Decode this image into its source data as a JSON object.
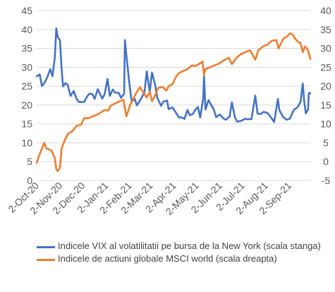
{
  "chart_data": {
    "type": "line",
    "left_axis": {
      "ylim": [
        0,
        45
      ],
      "ticks": [
        "0",
        "5",
        "10",
        "15",
        "20",
        "25",
        "30",
        "35",
        "40",
        "45"
      ]
    },
    "right_axis": {
      "ylim": [
        -5,
        40
      ],
      "ticks": [
        "-5",
        "0",
        "5",
        "10",
        "15",
        "20",
        "25",
        "30",
        "35",
        "40"
      ]
    },
    "x_range": [
      "2020-10-02",
      "2021-09-30"
    ],
    "x_ticks": [
      "2-Oct-20",
      "2-Nov-20",
      "2-Dec-20",
      "2-Jan-21",
      "2-Feb-21",
      "2-Mar-21",
      "2-Apr-21",
      "2-May-21",
      "2-Jun-21",
      "2-Jul-21",
      "2-Aug-21",
      "2-Sep-21"
    ],
    "x_tick_dates": [
      "2020-10-02",
      "2020-11-02",
      "2020-12-02",
      "2021-01-02",
      "2021-02-02",
      "2021-03-02",
      "2021-04-02",
      "2021-05-02",
      "2021-06-02",
      "2021-07-02",
      "2021-08-02",
      "2021-09-02"
    ],
    "grid": true,
    "legend_position": "bottom",
    "series": [
      {
        "name": "Indicele VIX al volatilitatii pe bursa de la New York (scala stanga)",
        "color": "#4472C4",
        "axis": "left",
        "points": [
          [
            "2020-10-02",
            27.6
          ],
          [
            "2020-10-06",
            28.1
          ],
          [
            "2020-10-09",
            25.0
          ],
          [
            "2020-10-13",
            26.1
          ],
          [
            "2020-10-16",
            27.3
          ],
          [
            "2020-10-20",
            29.5
          ],
          [
            "2020-10-23",
            27.6
          ],
          [
            "2020-10-26",
            32.5
          ],
          [
            "2020-10-28",
            40.3
          ],
          [
            "2020-10-30",
            38.0
          ],
          [
            "2020-11-02",
            37.1
          ],
          [
            "2020-11-04",
            29.6
          ],
          [
            "2020-11-06",
            24.9
          ],
          [
            "2020-11-09",
            25.8
          ],
          [
            "2020-11-12",
            25.4
          ],
          [
            "2020-11-16",
            22.4
          ],
          [
            "2020-11-20",
            23.7
          ],
          [
            "2020-11-24",
            21.6
          ],
          [
            "2020-11-27",
            20.8
          ],
          [
            "2020-12-01",
            20.8
          ],
          [
            "2020-12-04",
            20.8
          ],
          [
            "2020-12-08",
            22.3
          ],
          [
            "2020-12-11",
            23.0
          ],
          [
            "2020-12-15",
            22.9
          ],
          [
            "2020-12-18",
            21.6
          ],
          [
            "2020-12-22",
            24.2
          ],
          [
            "2020-12-28",
            21.7
          ],
          [
            "2020-12-31",
            22.8
          ],
          [
            "2021-01-04",
            26.9
          ],
          [
            "2021-01-07",
            22.4
          ],
          [
            "2021-01-11",
            24.1
          ],
          [
            "2021-01-14",
            23.3
          ],
          [
            "2021-01-19",
            23.2
          ],
          [
            "2021-01-22",
            21.9
          ],
          [
            "2021-01-26",
            23.0
          ],
          [
            "2021-01-27",
            37.2
          ],
          [
            "2021-01-29",
            33.1
          ],
          [
            "2021-02-02",
            25.6
          ],
          [
            "2021-02-05",
            20.9
          ],
          [
            "2021-02-09",
            21.6
          ],
          [
            "2021-02-12",
            19.9
          ],
          [
            "2021-02-17",
            21.5
          ],
          [
            "2021-02-22",
            23.4
          ],
          [
            "2021-02-25",
            28.9
          ],
          [
            "2021-03-01",
            23.4
          ],
          [
            "2021-03-04",
            28.6
          ],
          [
            "2021-03-08",
            25.5
          ],
          [
            "2021-03-11",
            21.9
          ],
          [
            "2021-03-16",
            19.8
          ],
          [
            "2021-03-19",
            20.9
          ],
          [
            "2021-03-24",
            21.2
          ],
          [
            "2021-03-26",
            18.9
          ],
          [
            "2021-03-31",
            19.4
          ],
          [
            "2021-04-05",
            17.9
          ],
          [
            "2021-04-09",
            16.7
          ],
          [
            "2021-04-13",
            16.7
          ],
          [
            "2021-04-16",
            16.3
          ],
          [
            "2021-04-20",
            18.7
          ],
          [
            "2021-04-23",
            17.3
          ],
          [
            "2021-04-27",
            17.6
          ],
          [
            "2021-04-30",
            18.6
          ],
          [
            "2021-05-04",
            19.5
          ],
          [
            "2021-05-07",
            16.7
          ],
          [
            "2021-05-11",
            21.8
          ],
          [
            "2021-05-12",
            27.6
          ],
          [
            "2021-05-14",
            18.8
          ],
          [
            "2021-05-18",
            21.3
          ],
          [
            "2021-05-21",
            20.2
          ],
          [
            "2021-05-25",
            18.8
          ],
          [
            "2021-05-28",
            16.8
          ],
          [
            "2021-06-02",
            17.5
          ],
          [
            "2021-06-07",
            16.4
          ],
          [
            "2021-06-10",
            16.1
          ],
          [
            "2021-06-15",
            17.0
          ],
          [
            "2021-06-18",
            20.7
          ],
          [
            "2021-06-22",
            16.7
          ],
          [
            "2021-06-25",
            15.6
          ],
          [
            "2021-06-30",
            15.8
          ],
          [
            "2021-07-06",
            16.4
          ],
          [
            "2021-07-09",
            16.2
          ],
          [
            "2021-07-14",
            16.3
          ],
          [
            "2021-07-19",
            22.5
          ],
          [
            "2021-07-22",
            17.7
          ],
          [
            "2021-07-26",
            17.6
          ],
          [
            "2021-07-30",
            18.2
          ],
          [
            "2021-08-04",
            17.9
          ],
          [
            "2021-08-09",
            16.7
          ],
          [
            "2021-08-13",
            15.5
          ],
          [
            "2021-08-18",
            21.6
          ],
          [
            "2021-08-20",
            18.6
          ],
          [
            "2021-08-25",
            16.8
          ],
          [
            "2021-08-30",
            16.1
          ],
          [
            "2021-09-03",
            16.4
          ],
          [
            "2021-09-08",
            18.7
          ],
          [
            "2021-09-13",
            19.4
          ],
          [
            "2021-09-17",
            20.8
          ],
          [
            "2021-09-20",
            25.7
          ],
          [
            "2021-09-22",
            20.9
          ],
          [
            "2021-09-24",
            17.8
          ],
          [
            "2021-09-27",
            18.8
          ],
          [
            "2021-09-28",
            23.2
          ],
          [
            "2021-09-30",
            23.1
          ]
        ]
      },
      {
        "name": "Indicele de actiuni globale MSCI world (scala dreapta)",
        "color": "#ED7D31",
        "axis": "right",
        "points": [
          [
            "2020-10-02",
            -0.3
          ],
          [
            "2020-10-05",
            1.5
          ],
          [
            "2020-10-08",
            3.0
          ],
          [
            "2020-10-12",
            5.0
          ],
          [
            "2020-10-15",
            3.5
          ],
          [
            "2020-10-19",
            3.2
          ],
          [
            "2020-10-22",
            2.8
          ],
          [
            "2020-10-26",
            1.0
          ],
          [
            "2020-10-28",
            -2.0
          ],
          [
            "2020-10-30",
            -2.5
          ],
          [
            "2020-11-02",
            -1.5
          ],
          [
            "2020-11-04",
            3.5
          ],
          [
            "2020-11-09",
            6.0
          ],
          [
            "2020-11-13",
            7.5
          ],
          [
            "2020-11-18",
            8.0
          ],
          [
            "2020-11-24",
            9.5
          ],
          [
            "2020-11-30",
            9.8
          ],
          [
            "2020-12-04",
            11.5
          ],
          [
            "2020-12-10",
            11.5
          ],
          [
            "2020-12-15",
            12.0
          ],
          [
            "2020-12-22",
            12.5
          ],
          [
            "2020-12-31",
            13.7
          ],
          [
            "2021-01-05",
            13.5
          ],
          [
            "2021-01-08",
            14.8
          ],
          [
            "2021-01-13",
            15.3
          ],
          [
            "2021-01-20",
            16.0
          ],
          [
            "2021-01-25",
            16.4
          ],
          [
            "2021-01-29",
            12.0
          ],
          [
            "2021-02-03",
            15.0
          ],
          [
            "2021-02-08",
            17.0
          ],
          [
            "2021-02-12",
            18.5
          ],
          [
            "2021-02-16",
            19.7
          ],
          [
            "2021-02-19",
            18.8
          ],
          [
            "2021-02-25",
            17.0
          ],
          [
            "2021-03-01",
            18.5
          ],
          [
            "2021-03-04",
            16.0
          ],
          [
            "2021-03-08",
            17.5
          ],
          [
            "2021-03-12",
            19.5
          ],
          [
            "2021-03-18",
            19.8
          ],
          [
            "2021-03-23",
            18.8
          ],
          [
            "2021-03-26",
            20.0
          ],
          [
            "2021-03-31",
            20.5
          ],
          [
            "2021-04-05",
            22.5
          ],
          [
            "2021-04-09",
            23.5
          ],
          [
            "2021-04-14",
            24.0
          ],
          [
            "2021-04-20",
            24.5
          ],
          [
            "2021-04-26",
            25.5
          ],
          [
            "2021-04-30",
            25.3
          ],
          [
            "2021-05-05",
            25.8
          ],
          [
            "2021-05-10",
            26.5
          ],
          [
            "2021-05-12",
            23.0
          ],
          [
            "2021-05-14",
            24.5
          ],
          [
            "2021-05-20",
            25.0
          ],
          [
            "2021-05-26",
            25.5
          ],
          [
            "2021-06-01",
            26.0
          ],
          [
            "2021-06-07",
            26.8
          ],
          [
            "2021-06-14",
            27.5
          ],
          [
            "2021-06-18",
            25.8
          ],
          [
            "2021-06-24",
            27.5
          ],
          [
            "2021-06-30",
            28.5
          ],
          [
            "2021-07-06",
            29.0
          ],
          [
            "2021-07-12",
            29.5
          ],
          [
            "2021-07-19",
            27.0
          ],
          [
            "2021-07-23",
            29.5
          ],
          [
            "2021-07-29",
            30.5
          ],
          [
            "2021-08-04",
            31.0
          ],
          [
            "2021-08-10",
            32.0
          ],
          [
            "2021-08-16",
            32.2
          ],
          [
            "2021-08-19",
            30.0
          ],
          [
            "2021-08-25",
            32.5
          ],
          [
            "2021-08-31",
            33.3
          ],
          [
            "2021-09-03",
            34.0
          ],
          [
            "2021-09-07",
            33.6
          ],
          [
            "2021-09-10",
            32.5
          ],
          [
            "2021-09-15",
            31.5
          ],
          [
            "2021-09-17",
            31.5
          ],
          [
            "2021-09-20",
            29.0
          ],
          [
            "2021-09-23",
            30.5
          ],
          [
            "2021-09-27",
            29.5
          ],
          [
            "2021-09-30",
            27.2
          ]
        ]
      }
    ]
  }
}
